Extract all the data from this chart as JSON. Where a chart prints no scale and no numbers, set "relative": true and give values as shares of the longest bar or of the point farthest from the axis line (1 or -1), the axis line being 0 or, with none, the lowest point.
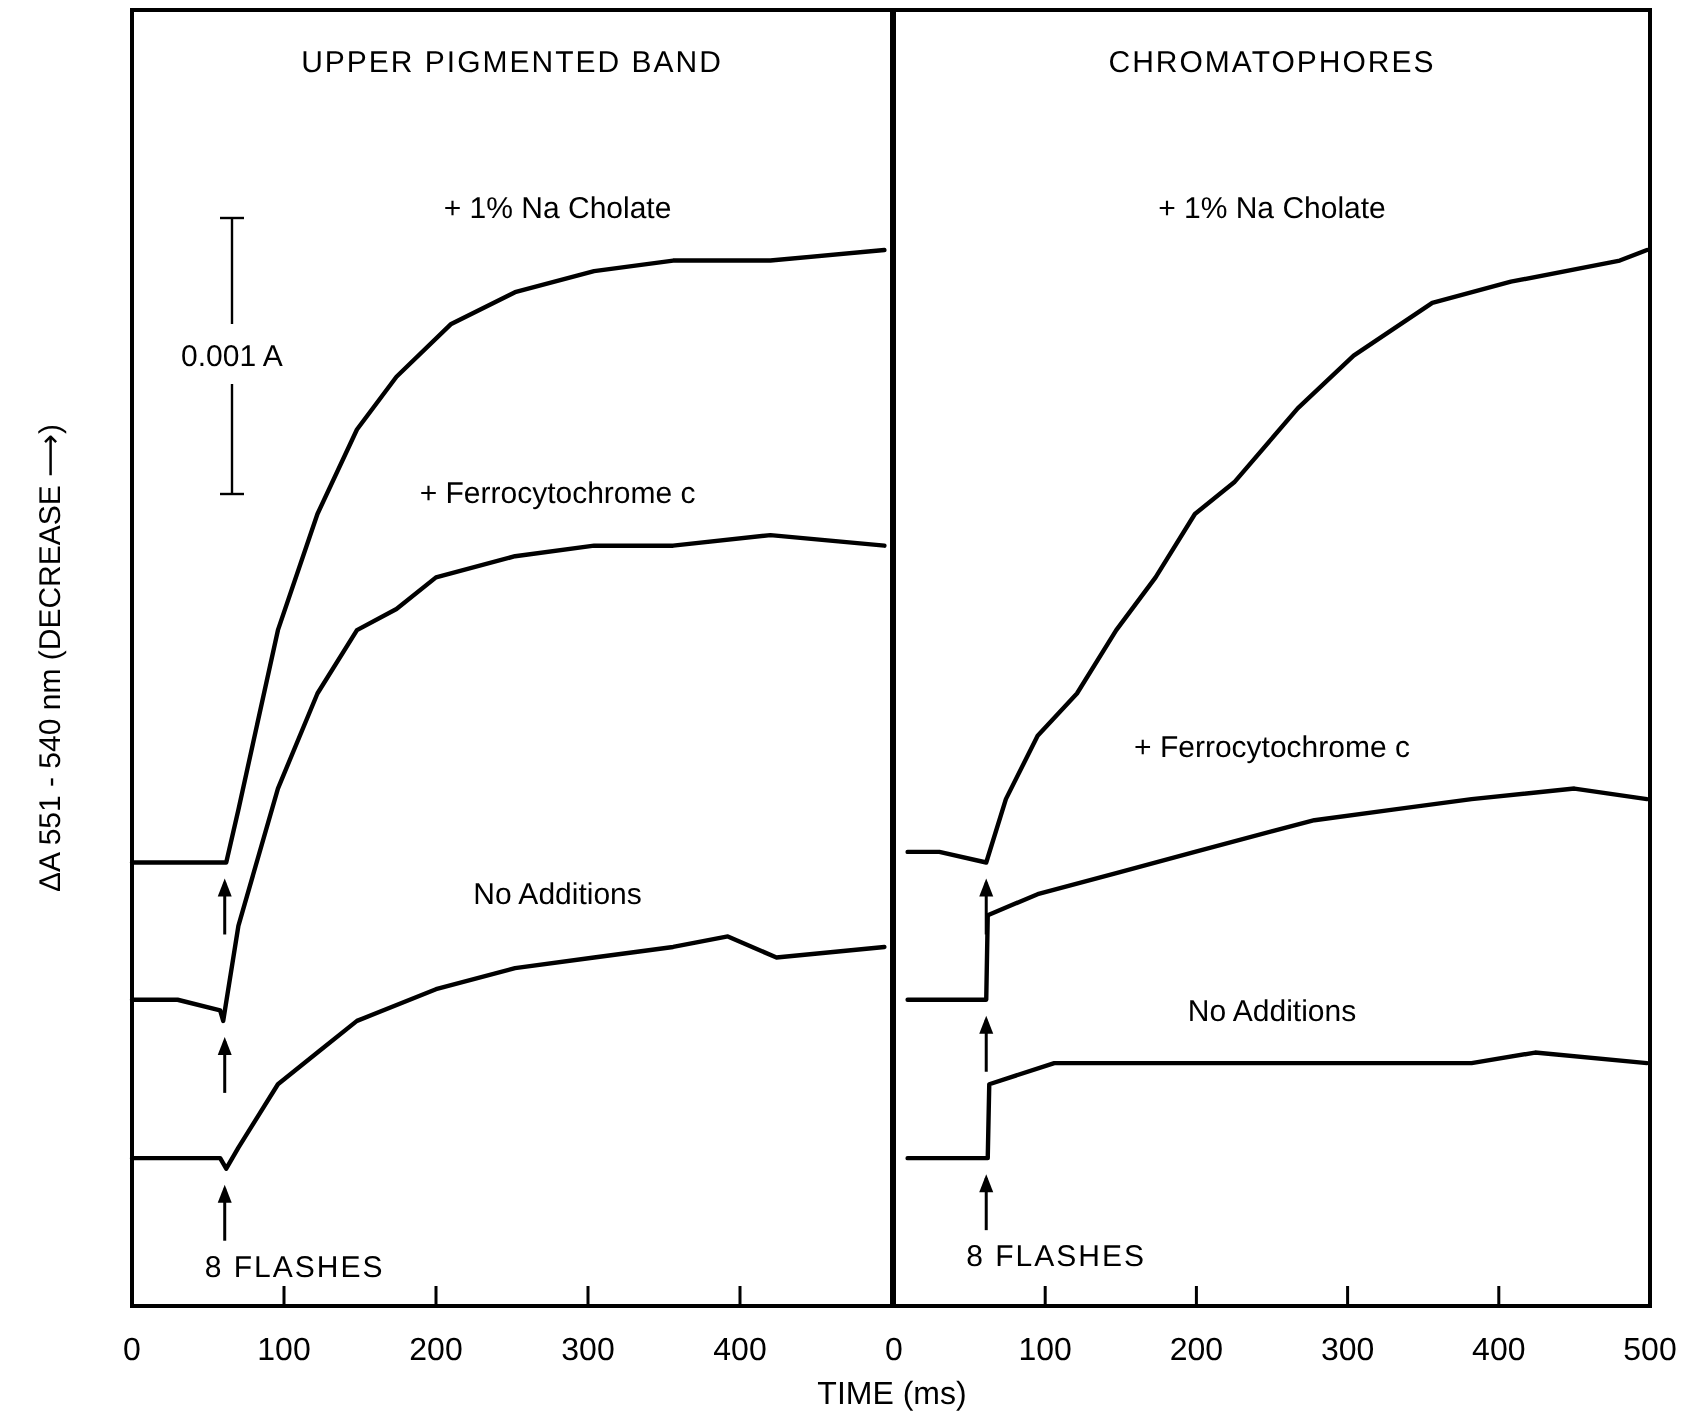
{
  "chart_data": [
    {
      "type": "line",
      "title": "UPPER PIGMENTED BAND",
      "ylabel": "ΔA 551 - 540 nm (DECREASE ⟶)",
      "xlabel": "TIME (ms)",
      "relative": true,
      "legend": false,
      "marker": "none",
      "xlim": [
        0,
        500
      ],
      "xticks": [
        0,
        100,
        200,
        300,
        400
      ],
      "annotations": [
        "0.001 A",
        "8 FLASHES"
      ],
      "series": [
        {
          "name": "+ 1% Na Cholate",
          "color": "#000000",
          "x": [
            0,
            30,
            60,
            62,
            70,
            96,
            122,
            148,
            174,
            210,
            252,
            304,
            356,
            420,
            495
          ],
          "values": [
            0.42,
            0.42,
            0.42,
            0.42,
            0.47,
            0.64,
            0.75,
            0.83,
            0.88,
            0.93,
            0.96,
            0.98,
            0.99,
            0.99,
            1.0
          ]
        },
        {
          "name": "+ Ferrocytochrome c",
          "color": "#000000",
          "x": [
            0,
            30,
            58,
            60,
            70,
            96,
            122,
            148,
            174,
            200,
            252,
            304,
            356,
            420,
            495
          ],
          "values": [
            0.29,
            0.29,
            0.28,
            0.27,
            0.36,
            0.49,
            0.58,
            0.64,
            0.66,
            0.69,
            0.71,
            0.72,
            0.72,
            0.73,
            0.72
          ]
        },
        {
          "name": "No Additions",
          "color": "#000000",
          "x": [
            0,
            30,
            58,
            62,
            70,
            96,
            122,
            148,
            200,
            252,
            304,
            356,
            392,
            424,
            495
          ],
          "values": [
            0.14,
            0.14,
            0.14,
            0.13,
            0.15,
            0.21,
            0.24,
            0.27,
            0.3,
            0.32,
            0.33,
            0.34,
            0.35,
            0.33,
            0.34
          ]
        }
      ]
    },
    {
      "type": "line",
      "title": "CHROMATOPHORES",
      "relative": true,
      "legend": false,
      "marker": "none",
      "xlim": [
        0,
        500
      ],
      "xticks": [
        0,
        100,
        200,
        300,
        400,
        500
      ],
      "annotations": [
        "8 FLASHES"
      ],
      "series": [
        {
          "name": "+ 1% Na Cholate",
          "color": "#000000",
          "x": [
            9,
            30,
            61,
            74,
            95,
            121,
            147,
            173,
            199,
            225,
            267,
            304,
            356,
            408,
            480,
            498
          ],
          "values": [
            0.43,
            0.43,
            0.42,
            0.48,
            0.54,
            0.58,
            0.64,
            0.69,
            0.75,
            0.78,
            0.85,
            0.9,
            0.95,
            0.97,
            0.99,
            1.0
          ]
        },
        {
          "name": "+ Ferrocytochrome c",
          "color": "#000000",
          "x": [
            9,
            30,
            61,
            62,
            95,
            147,
            199,
            251,
            278,
            330,
            382,
            450,
            498
          ],
          "values": [
            0.29,
            0.29,
            0.29,
            0.37,
            0.39,
            0.41,
            0.43,
            0.45,
            0.46,
            0.47,
            0.48,
            0.49,
            0.48
          ]
        },
        {
          "name": "No Additions",
          "color": "#000000",
          "x": [
            9,
            30,
            62,
            63,
            106,
            173,
            278,
            382,
            424,
            498
          ],
          "values": [
            0.14,
            0.14,
            0.14,
            0.21,
            0.23,
            0.23,
            0.23,
            0.23,
            0.24,
            0.23
          ]
        }
      ]
    }
  ]
}
